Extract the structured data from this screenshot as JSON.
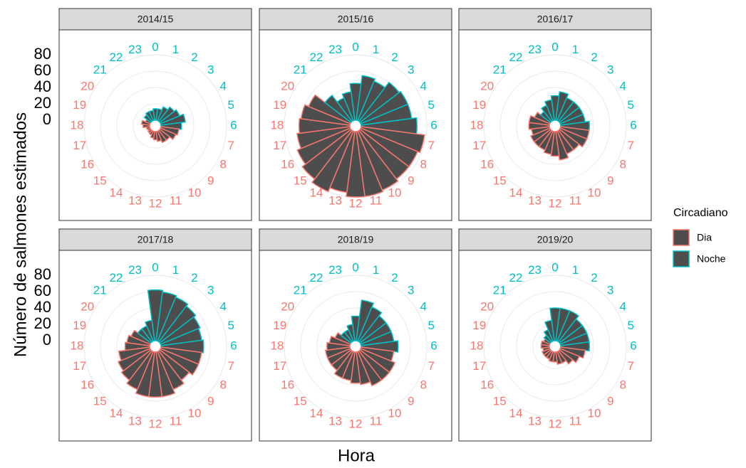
{
  "chart_data": {
    "type": "polar_bar",
    "xlabel": "Hora",
    "ylabel": "Número de salmones estimados",
    "legend_title": "Circadiano",
    "series": [
      {
        "name": "Dia",
        "color": "#F8766D"
      },
      {
        "name": "Noche",
        "color": "#00BFC4"
      }
    ],
    "bar_fill": "#4D4D4D",
    "categories": [
      "0",
      "1",
      "2",
      "3",
      "4",
      "5",
      "6",
      "7",
      "8",
      "9",
      "10",
      "11",
      "12",
      "13",
      "14",
      "15",
      "16",
      "17",
      "18",
      "19",
      "20",
      "21",
      "22",
      "23"
    ],
    "category_series": [
      1,
      1,
      1,
      1,
      1,
      1,
      1,
      0,
      0,
      0,
      0,
      0,
      0,
      0,
      0,
      0,
      0,
      0,
      0,
      0,
      0,
      1,
      1,
      1
    ],
    "ylim": [
      -7,
      80
    ],
    "yticks": [
      0,
      20,
      40,
      60,
      80
    ],
    "grid": true,
    "facets": [
      {
        "title": "2014/15",
        "values": [
          14,
          14,
          18,
          22,
          25,
          30,
          25,
          22,
          20,
          15,
          15,
          12,
          10,
          8,
          5,
          4,
          3,
          4,
          8,
          10,
          6,
          10,
          12,
          12
        ]
      },
      {
        "title": "2015/16",
        "values": [
          45,
          55,
          52,
          60,
          62,
          62,
          68,
          78,
          75,
          75,
          78,
          80,
          80,
          75,
          80,
          75,
          70,
          65,
          62,
          60,
          55,
          40,
          30,
          35
        ]
      },
      {
        "title": "2016/17",
        "values": [
          30,
          35,
          30,
          30,
          30,
          30,
          35,
          35,
          35,
          30,
          30,
          35,
          30,
          28,
          25,
          25,
          25,
          22,
          25,
          25,
          20,
          15,
          20,
          25
        ]
      },
      {
        "title": "2017/18",
        "values": [
          62,
          60,
          58,
          55,
          52,
          50,
          52,
          50,
          50,
          45,
          50,
          55,
          55,
          55,
          50,
          45,
          42,
          38,
          30,
          28,
          25,
          20,
          20,
          25
        ]
      },
      {
        "title": "2018/19",
        "values": [
          30,
          50,
          45,
          40,
          40,
          40,
          45,
          40,
          45,
          45,
          45,
          40,
          38,
          35,
          35,
          30,
          30,
          30,
          28,
          25,
          20,
          15,
          15,
          20
        ]
      },
      {
        "title": "2019/20",
        "values": [
          40,
          40,
          40,
          35,
          35,
          35,
          35,
          30,
          25,
          20,
          15,
          15,
          12,
          12,
          10,
          10,
          10,
          8,
          10,
          10,
          8,
          10,
          15,
          25
        ]
      }
    ]
  }
}
